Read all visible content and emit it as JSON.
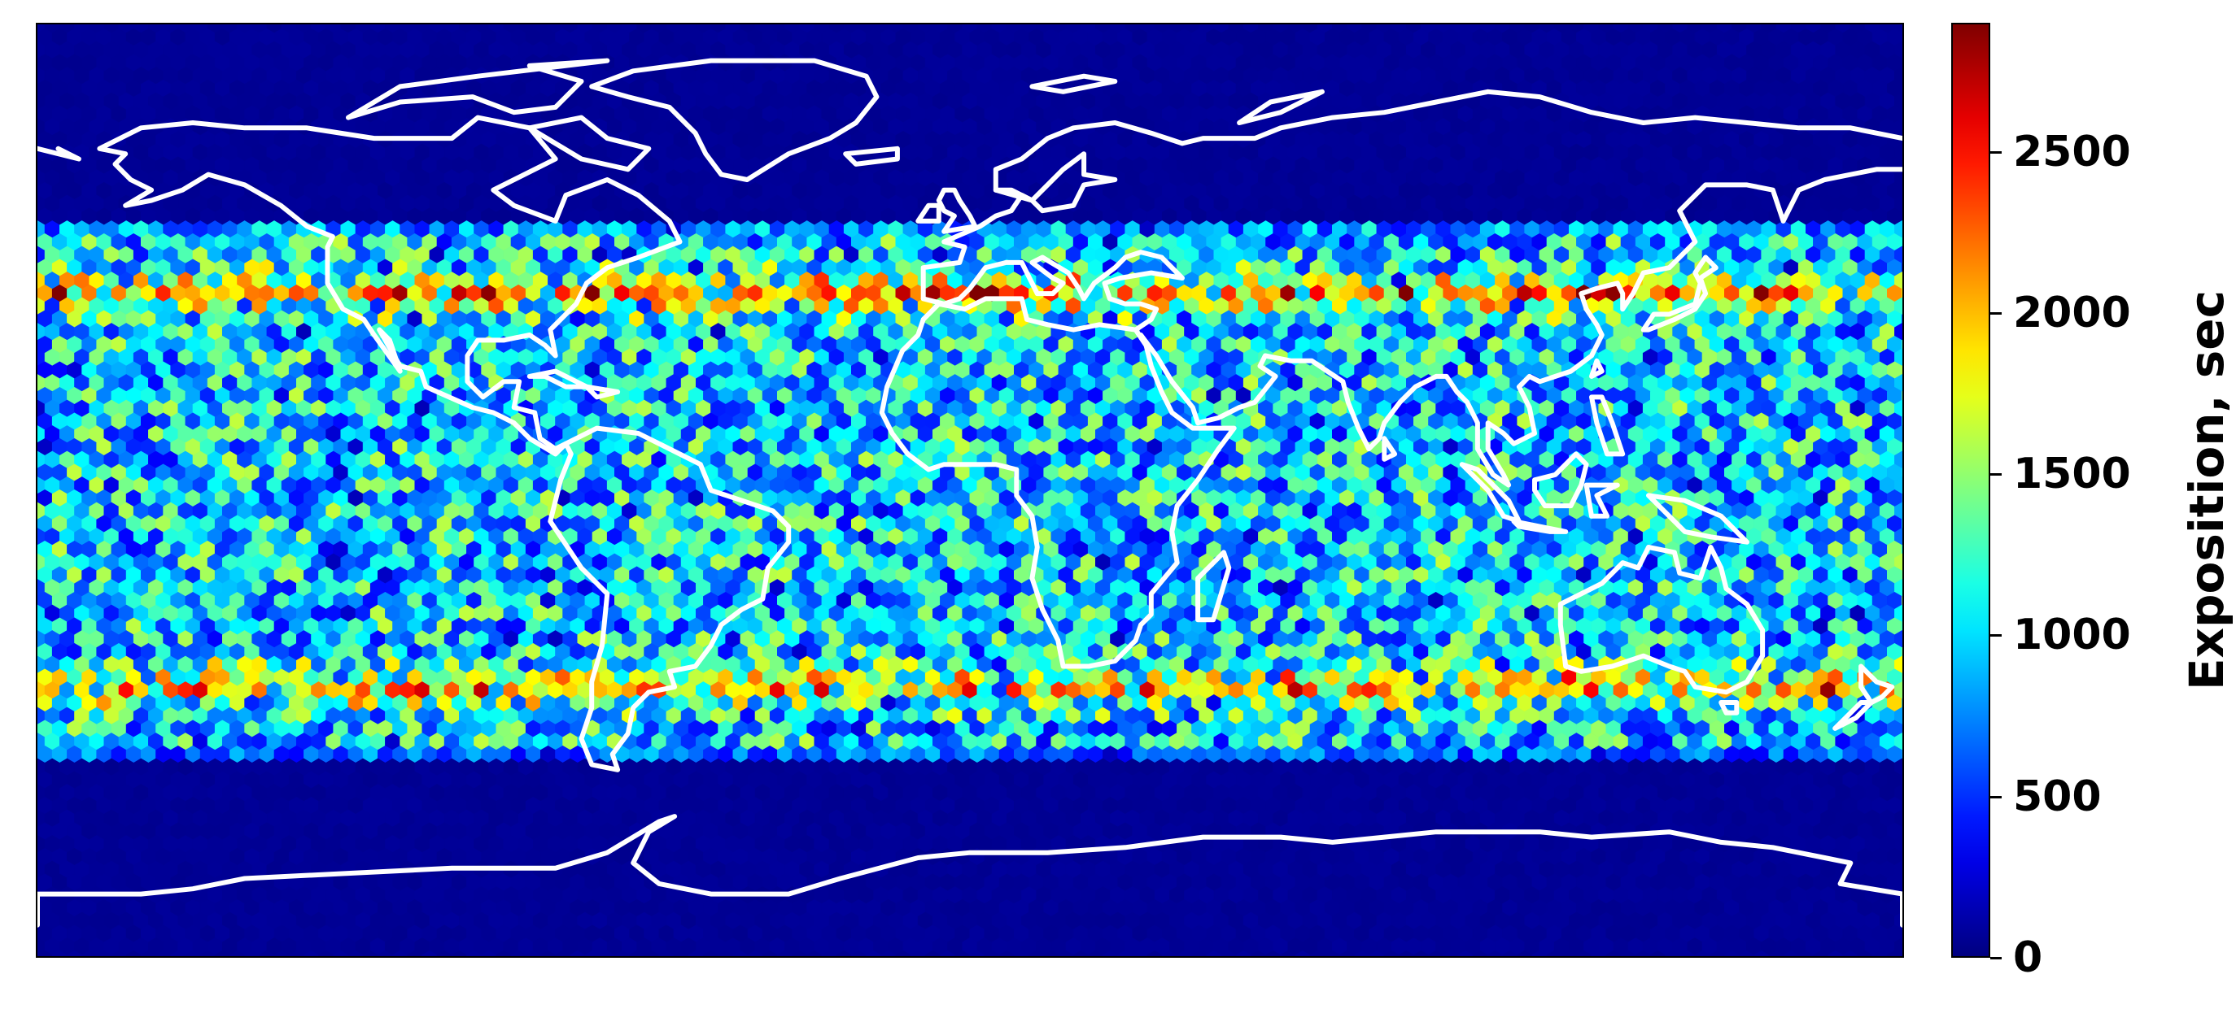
{
  "chart_data": {
    "type": "heatmap",
    "description_kind": "hexbin world map of satellite exposition",
    "projection": "plate carree",
    "lon_range": [
      -180,
      180
    ],
    "lat_range": [
      -90,
      90
    ],
    "coverage_lat_range": [
      -52,
      52
    ],
    "high_bands_lat": [
      38,
      -38
    ],
    "colormap": "jet",
    "coastline_color": "#ffffff",
    "colorbar": {
      "label": "Exposition, sec",
      "range": [
        0,
        2900
      ],
      "ticks": [
        0,
        500,
        1000,
        1500,
        2000,
        2500
      ],
      "tick_labels": [
        "0",
        "500",
        "1000",
        "1500",
        "2000",
        "2500"
      ]
    },
    "grid": false
  }
}
